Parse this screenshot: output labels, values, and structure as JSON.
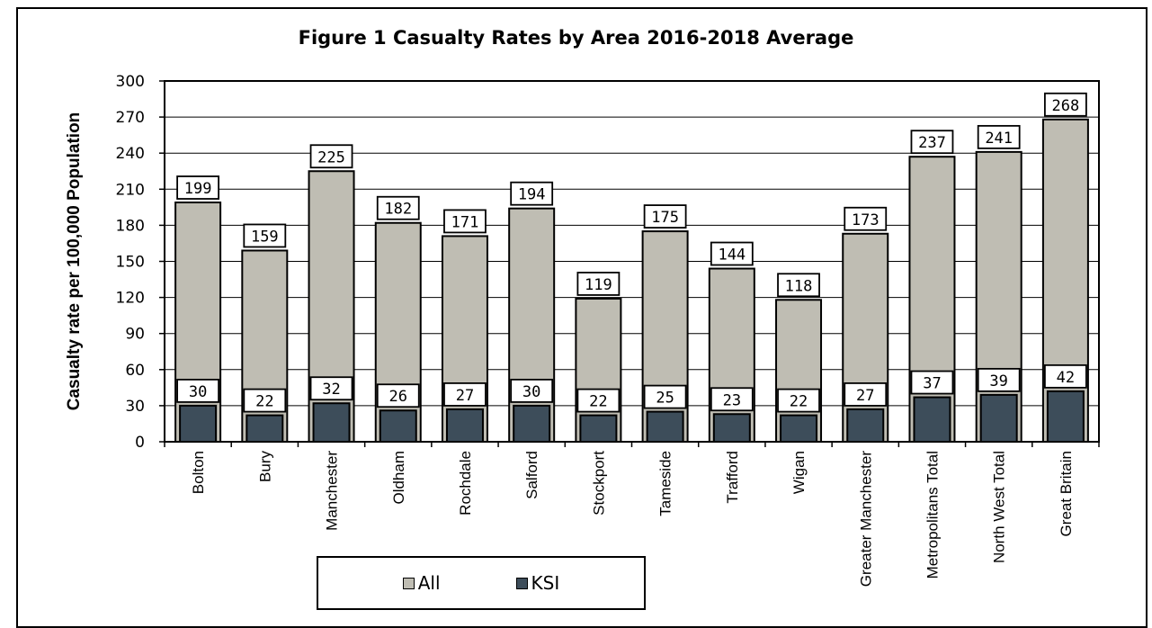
{
  "chart_data": {
    "type": "bar",
    "title": "Figure 1 Casualty Rates by Area 2016-2018 Average",
    "ylabel": "Casualty rate per 100,000 Population",
    "xlabel": "",
    "ylim": [
      0,
      300
    ],
    "yticks": [
      0,
      30,
      60,
      90,
      120,
      150,
      180,
      210,
      240,
      270,
      300
    ],
    "grid": true,
    "legend_position": "bottom",
    "categories": [
      "Bolton",
      "Bury",
      "Manchester",
      "Oldham",
      "Rochdale",
      "Salford",
      "Stockport",
      "Tameside",
      "Trafford",
      "Wigan",
      "Greater Manchester",
      "Metropolitans Total",
      "North West Total",
      "Great Britain"
    ],
    "series": [
      {
        "name": "All",
        "color": "#bfbdb3",
        "values": [
          199,
          159,
          225,
          182,
          171,
          194,
          119,
          175,
          144,
          118,
          173,
          237,
          241,
          268
        ]
      },
      {
        "name": "KSI",
        "color": "#3d4d5a",
        "values": [
          30,
          22,
          32,
          26,
          27,
          30,
          22,
          25,
          23,
          22,
          27,
          37,
          39,
          42
        ]
      }
    ]
  }
}
